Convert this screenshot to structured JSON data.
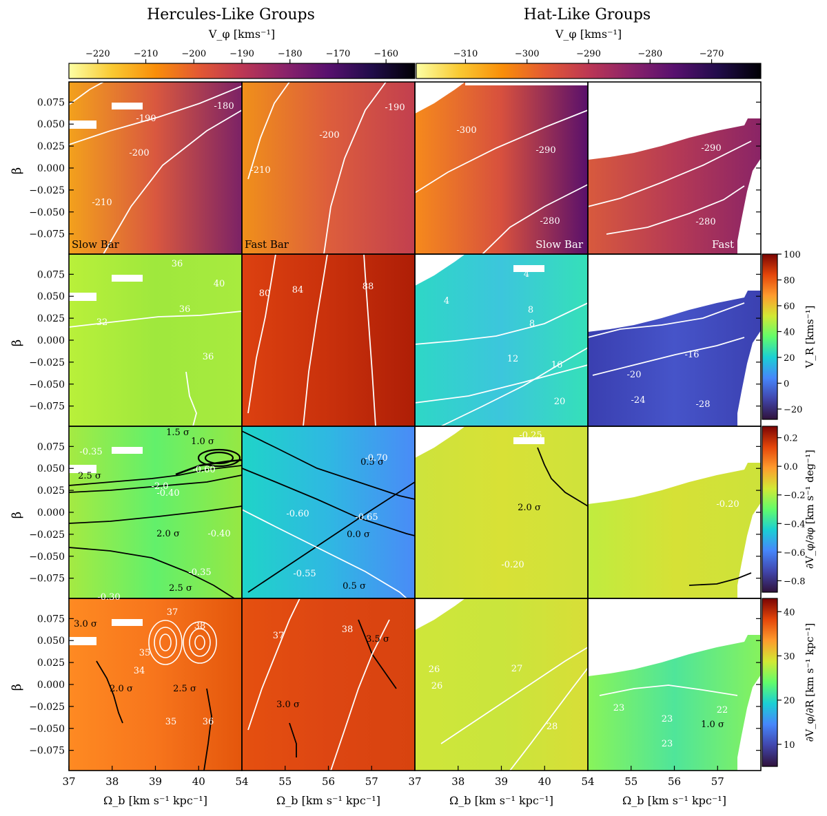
{
  "chart_data": {
    "type": "heatmap",
    "group_titles": [
      "Hercules-Like Groups",
      "Hat-Like Groups"
    ],
    "top_colorbars": [
      {
        "label": "V_φ [kms⁻¹]",
        "ticks": [
          -220,
          -210,
          -200,
          -190,
          -180,
          -170,
          -160
        ],
        "range": [
          -226,
          -154
        ]
      },
      {
        "label": "V_φ [kms⁻¹]",
        "ticks": [
          -310,
          -300,
          -290,
          -280,
          -270
        ],
        "range": [
          -318,
          -262
        ]
      }
    ],
    "side_colorbars": [
      {
        "label": "V_R [kms⁻¹]",
        "ticks": [
          -20,
          0,
          20,
          40,
          60,
          80,
          100
        ],
        "range": [
          -28,
          100
        ]
      },
      {
        "label": "∂V_φ/∂φ [km s⁻¹ deg⁻¹]",
        "ticks": [
          -0.8,
          -0.6,
          -0.4,
          -0.2,
          0.0,
          0.2
        ],
        "range": [
          -0.88,
          0.28
        ]
      },
      {
        "label": "∂V_φ/∂R [km s⁻¹ kpc⁻¹]",
        "ticks": [
          10,
          20,
          30,
          40
        ],
        "range": [
          5,
          43
        ]
      }
    ],
    "y_axis": {
      "label": "β",
      "ticks": [
        0.075,
        0.05,
        0.025,
        0.0,
        -0.025,
        -0.05,
        -0.075
      ],
      "tick_labels": [
        "0.075",
        "0.050",
        "0.025",
        "0.000",
        "−0.025",
        "−0.050",
        "−0.075"
      ],
      "range": [
        -0.098,
        0.098
      ]
    },
    "x_axes": [
      {
        "label": "Ω_b [km s⁻¹ kpc⁻¹]",
        "ticks": [
          37,
          38,
          39,
          40
        ],
        "range": [
          37,
          41
        ]
      },
      {
        "label": "Ω_b [km s⁻¹ kpc⁻¹]",
        "ticks": [
          54,
          55,
          56,
          57
        ],
        "range": [
          54,
          58
        ]
      },
      {
        "label": "Ω_b [km s⁻¹ kpc⁻¹]",
        "ticks": [
          37,
          38,
          39,
          40
        ],
        "range": [
          37,
          41
        ]
      },
      {
        "label": "Ω_b [km s⁻¹ kpc⁻¹]",
        "ticks": [
          54,
          55,
          56,
          57
        ],
        "range": [
          54,
          58
        ]
      }
    ],
    "column_labels": [
      "Slow Bar",
      "Fast Bar",
      "Slow Bar",
      "Fast Bar"
    ],
    "contour_labels": [
      [
        "-180",
        "-190",
        "-200",
        "-210"
      ],
      [
        "-190",
        "-200",
        "-210"
      ],
      [
        "-300",
        "-290",
        "-280"
      ],
      [
        "-290",
        "-280"
      ],
      [
        "36",
        "40",
        "36",
        "32",
        "36"
      ],
      [
        "80",
        "84",
        "88"
      ],
      [
        "4",
        "4",
        "8",
        "8",
        "12",
        "16",
        "20"
      ],
      [
        "-16",
        "-20",
        "-24",
        "-28"
      ],
      [
        "1.5 σ",
        "1.0 σ",
        "-0.35",
        "2.5 σ",
        "-2.0",
        "-0.40",
        "2.0 σ",
        "-0.40",
        "-0.35",
        "-0.30",
        "2.5 σ",
        "3.0 σ",
        "-0.60"
      ],
      [
        "0.5 σ",
        "-0.70",
        "-0.60",
        "-0.65",
        "0.0 σ",
        "-0.55",
        "0.5 σ"
      ],
      [
        "-0.25",
        "2.0 σ",
        "-0.20"
      ],
      [
        "-0.20",
        "-0.20"
      ],
      [
        "37",
        "38",
        "35",
        "34",
        "2.0 σ",
        "2.5 σ",
        "35",
        "36",
        "26"
      ],
      [
        "37",
        "38",
        "3.5 σ",
        "3.0 σ"
      ],
      [
        "26",
        "27",
        "28"
      ],
      [
        "23",
        "23",
        "1.0 σ",
        "22",
        "23",
        "23"
      ]
    ]
  }
}
